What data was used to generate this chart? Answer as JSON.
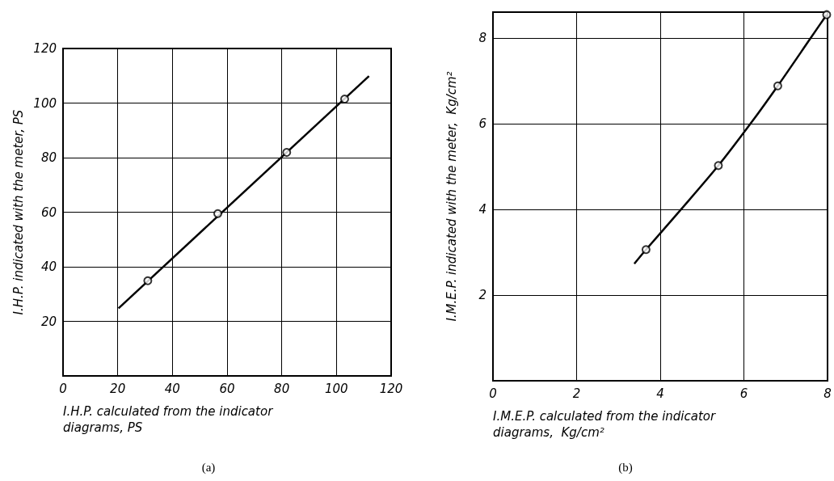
{
  "chart_data": [
    {
      "type": "scatter",
      "xlabel": "I.H.P. calculated from the indicator\ndiagrams, PS",
      "ylabel": "I.H.P. indicated with the meter, PS",
      "xlim": [
        0,
        120
      ],
      "ylim": [
        0,
        120
      ],
      "xticks": [
        0,
        20,
        40,
        60,
        80,
        100,
        120
      ],
      "yticks": [
        20,
        40,
        60,
        80,
        100,
        120
      ],
      "grid": true,
      "annotations": [
        "(a)"
      ],
      "series": [
        {
          "type": "line",
          "color": "#000000",
          "marker": "none",
          "x": [
            20.3,
            111.9
          ],
          "values": [
            24.8,
            109.9
          ]
        },
        {
          "color": "#000000",
          "marker": "circle",
          "x": [
            31,
            56.6,
            81.8,
            103
          ],
          "values": [
            34.9,
            59.5,
            81.9,
            101.5
          ]
        }
      ]
    },
    {
      "type": "scatter",
      "xlabel": "I.M.E.P. calculated from the indicator\ndiagrams,  Kg/cm²",
      "ylabel": "I.M.E.P. indicated with the meter,  Kg/cm²",
      "xlim": [
        0,
        8
      ],
      "ylim": [
        0,
        8.6
      ],
      "xticks": [
        0,
        2,
        4,
        6,
        8
      ],
      "yticks": [
        2,
        4,
        6,
        8
      ],
      "grid": true,
      "annotations": [
        "(b)"
      ],
      "series": [
        {
          "type": "line",
          "color": "#000000",
          "marker": "none",
          "x": [
            3.38,
            3.66,
            4.5,
            5.39,
            6.16,
            6.81,
            7.6,
            7.98
          ],
          "values": [
            2.73,
            3.06,
            4.0,
            5.02,
            6.0,
            6.88,
            8.0,
            8.54
          ]
        },
        {
          "color": "#000000",
          "marker": "circle",
          "x": [
            3.66,
            5.39,
            6.81,
            7.98
          ],
          "values": [
            3.06,
            5.02,
            6.88,
            8.54
          ]
        }
      ]
    }
  ]
}
